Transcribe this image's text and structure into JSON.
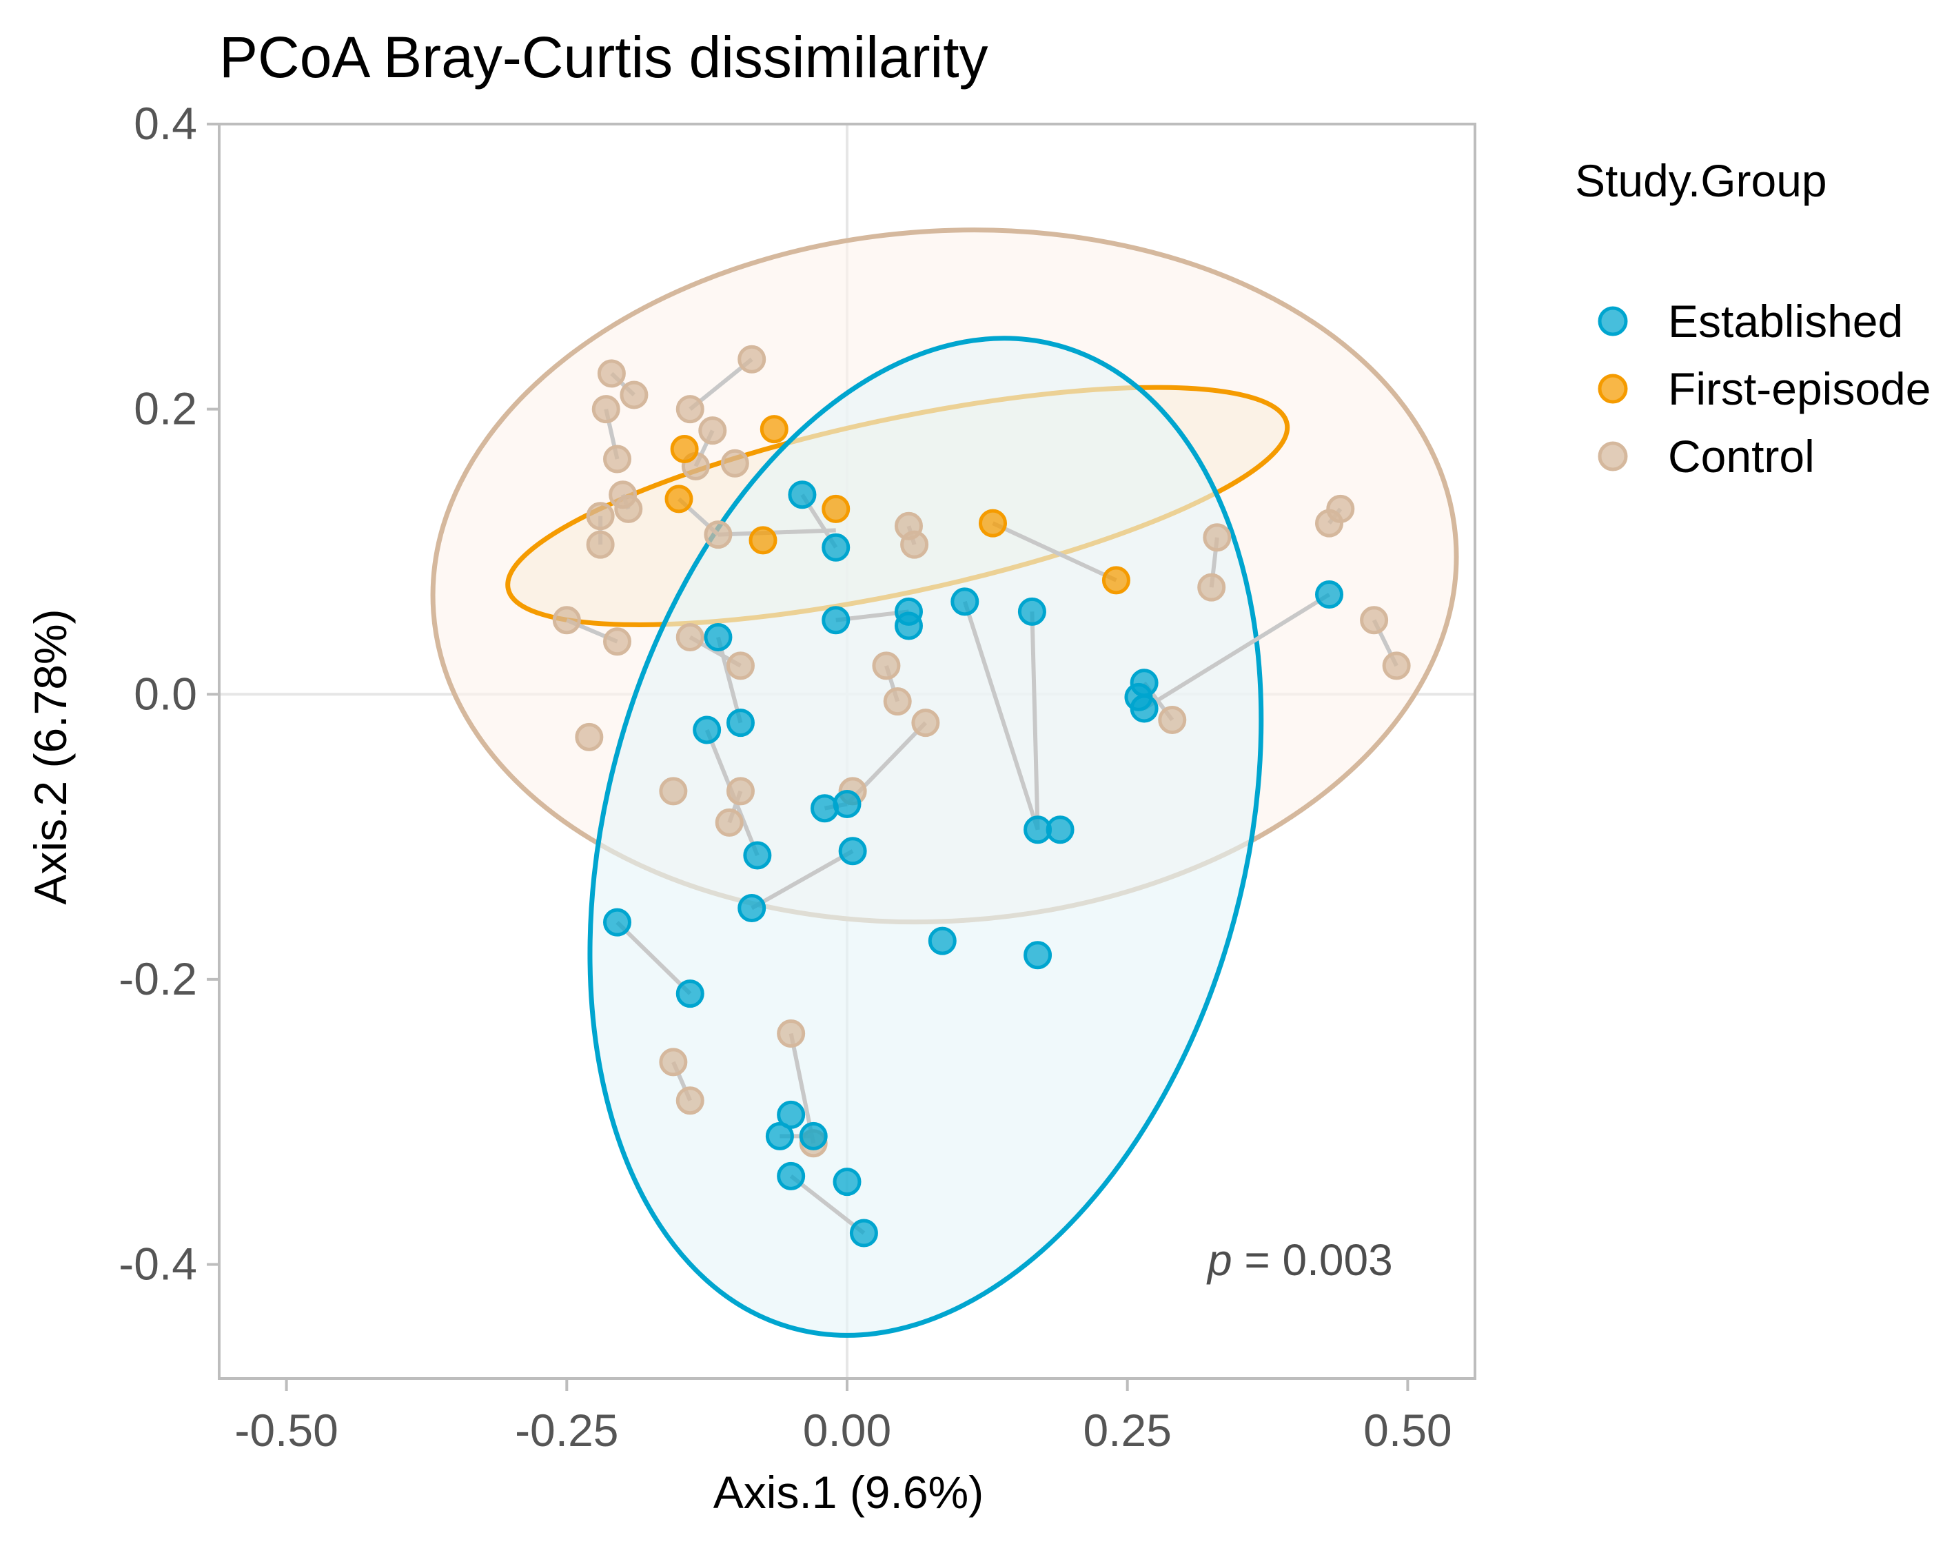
{
  "chart_data": {
    "type": "scatter",
    "title": "PCoA Bray-Curtis dissimilarity",
    "xlabel": "Axis.1 (9.6%)",
    "ylabel": "Axis.2 (6.78%)",
    "xlim": [
      -0.56,
      0.56
    ],
    "ylim": [
      -0.48,
      0.4
    ],
    "xticks": [
      -0.5,
      -0.25,
      0.0,
      0.25,
      0.5
    ],
    "xtick_labels": [
      "-0.50",
      "-0.25",
      "0.00",
      "0.25",
      "0.50"
    ],
    "yticks": [
      -0.4,
      -0.2,
      0.0,
      0.2,
      0.4
    ],
    "ytick_labels": [
      "-0.4",
      "-0.2",
      "0.0",
      "0.2",
      "0.4"
    ],
    "grid": false,
    "zero_lines": true,
    "annotation": {
      "italic": "p",
      "text": " = 0.003",
      "x": 0.3,
      "y": -0.4
    },
    "legend": {
      "title": "Study.Group",
      "position": "right",
      "entries": [
        "Established",
        "First-episode",
        "Control"
      ]
    },
    "colors": {
      "Established": "#00A5CF",
      "First-episode": "#F59B00",
      "Control": "#D5B89D",
      "link": "#C8C8C8",
      "zero_line": "#E6E6E6",
      "panel_border": "#BDBDBD"
    },
    "ellipses": [
      {
        "group": "Control",
        "cx": 0.087,
        "cy": 0.083,
        "rx": 0.457,
        "ry": 0.242,
        "angle": -4,
        "fill": "#FDF4EC",
        "fill_opacity": 0.6
      },
      {
        "group": "First-episode",
        "cx": 0.045,
        "cy": 0.132,
        "rx": 0.355,
        "ry": 0.061,
        "angle": -12,
        "fill": "#F7E9D2",
        "fill_opacity": 0.4
      },
      {
        "group": "Established",
        "cx": 0.07,
        "cy": -0.1,
        "rx": 0.285,
        "ry": 0.357,
        "angle": 15,
        "fill": "#E6F5F8",
        "fill_opacity": 0.6
      }
    ],
    "series": [
      {
        "name": "Control",
        "points": [
          [
            -0.21,
            0.225
          ],
          [
            -0.19,
            0.21
          ],
          [
            -0.215,
            0.2
          ],
          [
            -0.205,
            0.165
          ],
          [
            -0.2,
            0.14
          ],
          [
            -0.195,
            0.13
          ],
          [
            -0.22,
            0.125
          ],
          [
            -0.22,
            0.105
          ],
          [
            -0.25,
            0.052
          ],
          [
            -0.205,
            0.037
          ],
          [
            -0.14,
            0.2
          ],
          [
            -0.12,
            0.185
          ],
          [
            -0.135,
            0.16
          ],
          [
            -0.1,
            0.162
          ],
          [
            -0.085,
            0.235
          ],
          [
            -0.115,
            0.112
          ],
          [
            -0.14,
            0.04
          ],
          [
            -0.095,
            0.02
          ],
          [
            -0.23,
            -0.03
          ],
          [
            -0.155,
            -0.068
          ],
          [
            -0.095,
            -0.068
          ],
          [
            -0.105,
            -0.09
          ],
          [
            0.005,
            -0.068
          ],
          [
            0.035,
            0.02
          ],
          [
            0.045,
            -0.005
          ],
          [
            0.07,
            -0.02
          ],
          [
            0.055,
            0.118
          ],
          [
            0.06,
            0.105
          ],
          [
            0.33,
            0.11
          ],
          [
            0.325,
            0.075
          ],
          [
            0.29,
            -0.018
          ],
          [
            0.43,
            0.12
          ],
          [
            0.44,
            0.13
          ],
          [
            0.47,
            0.052
          ],
          [
            0.49,
            0.02
          ],
          [
            -0.05,
            -0.238
          ],
          [
            -0.03,
            -0.315
          ],
          [
            -0.155,
            -0.258
          ],
          [
            -0.14,
            -0.285
          ]
        ]
      },
      {
        "name": "First-episode",
        "points": [
          [
            -0.145,
            0.172
          ],
          [
            -0.15,
            0.137
          ],
          [
            -0.065,
            0.186
          ],
          [
            -0.075,
            0.108
          ],
          [
            -0.01,
            0.13
          ],
          [
            0.13,
            0.12
          ],
          [
            0.24,
            0.08
          ]
        ]
      },
      {
        "name": "Established",
        "points": [
          [
            -0.04,
            0.14
          ],
          [
            -0.01,
            0.103
          ],
          [
            -0.01,
            0.052
          ],
          [
            0.055,
            0.058
          ],
          [
            0.055,
            0.048
          ],
          [
            0.105,
            0.065
          ],
          [
            0.165,
            0.058
          ],
          [
            -0.115,
            0.04
          ],
          [
            -0.125,
            -0.025
          ],
          [
            -0.095,
            -0.02
          ],
          [
            -0.08,
            -0.113
          ],
          [
            -0.085,
            -0.15
          ],
          [
            0.005,
            -0.11
          ],
          [
            -0.02,
            -0.08
          ],
          [
            0.0,
            -0.077
          ],
          [
            0.085,
            -0.173
          ],
          [
            0.17,
            -0.095
          ],
          [
            0.19,
            -0.095
          ],
          [
            0.17,
            -0.183
          ],
          [
            0.265,
            0.008
          ],
          [
            0.26,
            -0.002
          ],
          [
            0.265,
            -0.01
          ],
          [
            0.43,
            0.07
          ],
          [
            -0.205,
            -0.16
          ],
          [
            -0.14,
            -0.21
          ],
          [
            -0.05,
            -0.295
          ],
          [
            -0.03,
            -0.31
          ],
          [
            -0.06,
            -0.31
          ],
          [
            -0.05,
            -0.338
          ],
          [
            0.0,
            -0.342
          ],
          [
            0.015,
            -0.378
          ]
        ]
      }
    ],
    "links": [
      [
        [
          -0.21,
          0.225
        ],
        [
          -0.19,
          0.21
        ]
      ],
      [
        [
          -0.215,
          0.2
        ],
        [
          -0.205,
          0.165
        ]
      ],
      [
        [
          -0.2,
          0.14
        ],
        [
          -0.195,
          0.13
        ]
      ],
      [
        [
          -0.22,
          0.125
        ],
        [
          -0.22,
          0.105
        ]
      ],
      [
        [
          -0.25,
          0.052
        ],
        [
          -0.205,
          0.037
        ]
      ],
      [
        [
          -0.14,
          0.2
        ],
        [
          -0.085,
          0.235
        ]
      ],
      [
        [
          -0.12,
          0.185
        ],
        [
          -0.135,
          0.16
        ]
      ],
      [
        [
          -0.15,
          0.137
        ],
        [
          -0.115,
          0.112
        ]
      ],
      [
        [
          -0.115,
          0.112
        ],
        [
          -0.01,
          0.115
        ]
      ],
      [
        [
          -0.04,
          0.14
        ],
        [
          -0.01,
          0.103
        ]
      ],
      [
        [
          -0.01,
          0.052
        ],
        [
          0.055,
          0.058
        ]
      ],
      [
        [
          0.13,
          0.12
        ],
        [
          0.24,
          0.08
        ]
      ],
      [
        [
          0.105,
          0.065
        ],
        [
          0.17,
          -0.095
        ]
      ],
      [
        [
          0.165,
          0.058
        ],
        [
          0.17,
          -0.095
        ]
      ],
      [
        [
          -0.115,
          0.04
        ],
        [
          -0.095,
          -0.02
        ]
      ],
      [
        [
          -0.14,
          0.04
        ],
        [
          -0.095,
          0.02
        ]
      ],
      [
        [
          -0.125,
          -0.025
        ],
        [
          -0.08,
          -0.113
        ]
      ],
      [
        [
          -0.095,
          -0.068
        ],
        [
          -0.105,
          -0.09
        ]
      ],
      [
        [
          -0.085,
          -0.15
        ],
        [
          0.005,
          -0.11
        ]
      ],
      [
        [
          -0.02,
          -0.08
        ],
        [
          0.0,
          -0.077
        ]
      ],
      [
        [
          0.0,
          -0.077
        ],
        [
          0.07,
          -0.02
        ]
      ],
      [
        [
          0.035,
          0.02
        ],
        [
          0.045,
          -0.005
        ]
      ],
      [
        [
          0.055,
          0.118
        ],
        [
          0.06,
          0.105
        ]
      ],
      [
        [
          0.33,
          0.11
        ],
        [
          0.325,
          0.075
        ]
      ],
      [
        [
          0.265,
          0.008
        ],
        [
          0.29,
          -0.018
        ]
      ],
      [
        [
          0.265,
          -0.01
        ],
        [
          0.43,
          0.07
        ]
      ],
      [
        [
          0.43,
          0.12
        ],
        [
          0.44,
          0.13
        ]
      ],
      [
        [
          0.47,
          0.052
        ],
        [
          0.49,
          0.02
        ]
      ],
      [
        [
          -0.205,
          -0.16
        ],
        [
          -0.14,
          -0.21
        ]
      ],
      [
        [
          -0.05,
          -0.238
        ],
        [
          -0.03,
          -0.315
        ]
      ],
      [
        [
          -0.06,
          -0.31
        ],
        [
          -0.03,
          -0.31
        ]
      ],
      [
        [
          -0.05,
          -0.338
        ],
        [
          0.015,
          -0.378
        ]
      ],
      [
        [
          -0.155,
          -0.258
        ],
        [
          -0.14,
          -0.285
        ]
      ]
    ]
  }
}
